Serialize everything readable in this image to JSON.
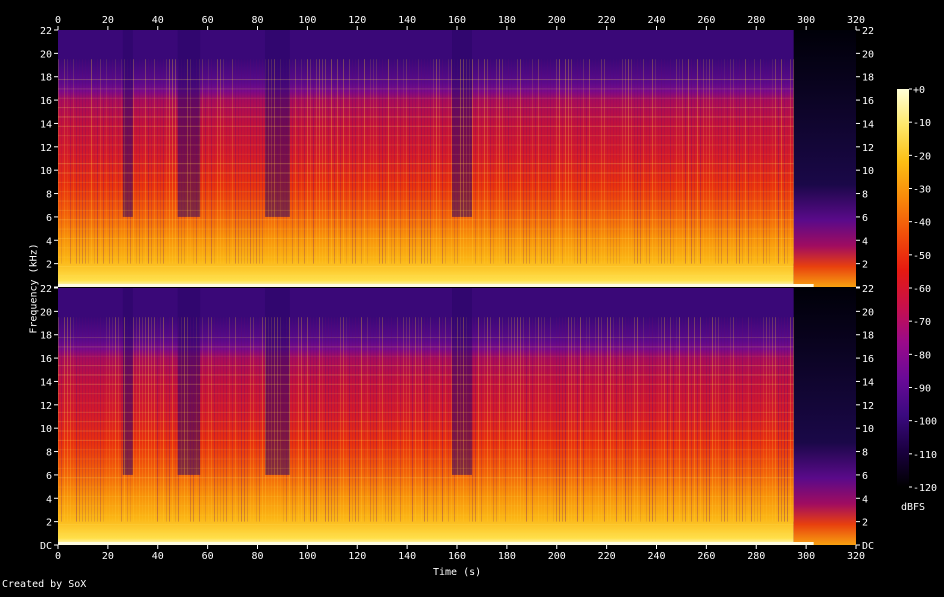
{
  "chart_data": {
    "type": "heatmap",
    "title": "",
    "xlabel": "Time (s)",
    "ylabel": "Frequency (kHz)",
    "xlim": [
      0,
      320
    ],
    "ylim": [
      0,
      22
    ],
    "x_ticks": [
      0,
      20,
      40,
      60,
      80,
      100,
      120,
      140,
      160,
      180,
      200,
      220,
      240,
      260,
      280,
      300,
      320
    ],
    "y_tick_labels": [
      "DC",
      "2",
      "4",
      "6",
      "8",
      "10",
      "12",
      "14",
      "16",
      "18",
      "20",
      "22"
    ],
    "y_tick_values": [
      0,
      2,
      4,
      6,
      8,
      10,
      12,
      14,
      16,
      18,
      20,
      22
    ],
    "channels": 2,
    "colorbar": {
      "label": "dBFS",
      "range": [
        -120,
        0
      ],
      "ticks": [
        "+0",
        "-10",
        "-20",
        "-30",
        "-40",
        "-50",
        "-60",
        "-70",
        "-80",
        "-90",
        "-100",
        "-110",
        "-120"
      ],
      "tick_values": [
        0,
        -10,
        -20,
        -30,
        -40,
        -50,
        -60,
        -70,
        -80,
        -90,
        -100,
        -110,
        -120
      ],
      "colors": [
        "#000000",
        "#1a0040",
        "#3b0a80",
        "#6a0a98",
        "#9a0a8a",
        "#c8104a",
        "#e61a10",
        "#f2500a",
        "#f88a0a",
        "#fcbf14",
        "#fee86a",
        "#ffffd8"
      ]
    },
    "audio_end_s": 295,
    "music_cutoff_khz": 19.5,
    "quiet_segments_s": [
      [
        26,
        30
      ],
      [
        48,
        57
      ],
      [
        83,
        93
      ],
      [
        158,
        166
      ]
    ]
  },
  "footer": {
    "credit": "Created by SoX"
  }
}
